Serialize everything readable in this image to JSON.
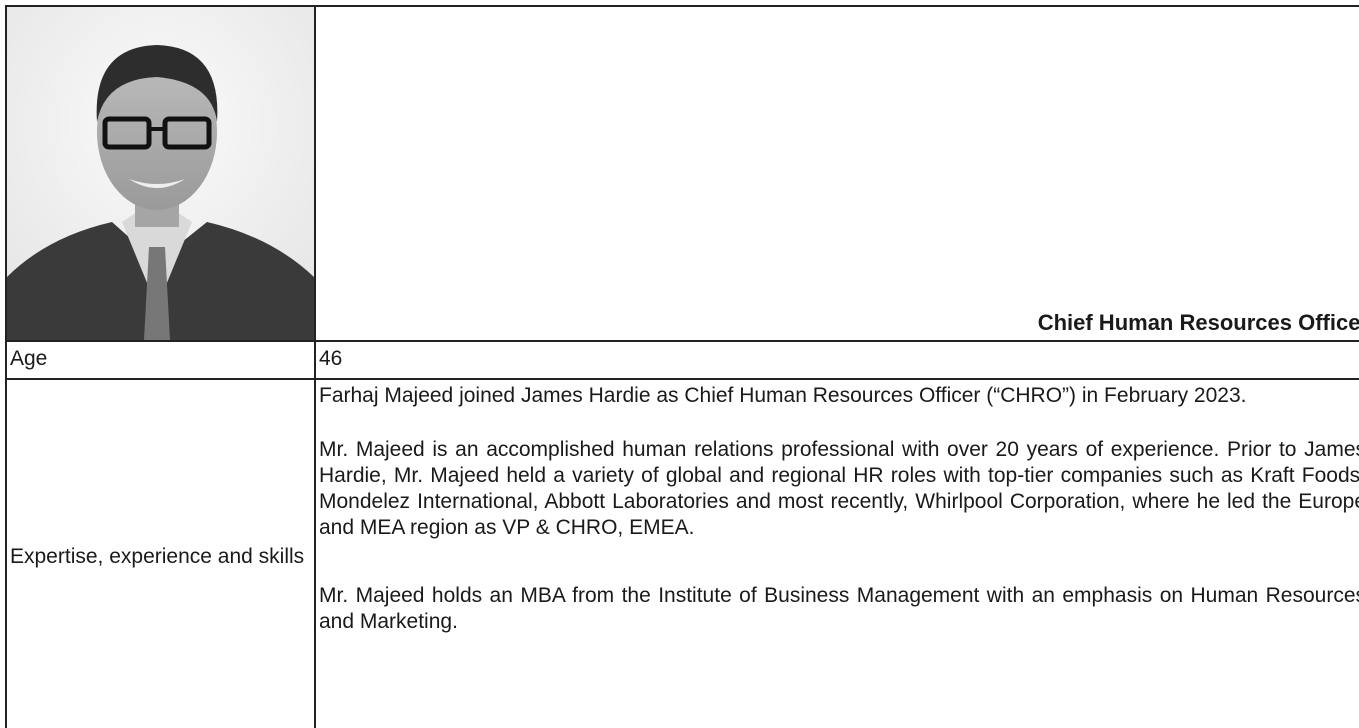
{
  "header": {
    "title": "Chief Human Resources Officer"
  },
  "rows": [
    {
      "label": "Age",
      "value": "46"
    },
    {
      "label": "Expertise, experience and skills",
      "paragraphs": [
        "Farhaj Majeed joined James Hardie as Chief Human Resources Officer (“CHRO”) in February 2023.",
        "Mr. Majeed is an accomplished human relations professional with over 20 years of experience. Prior to James Hardie, Mr. Majeed held a variety of global and regional HR roles with top-tier companies such as Kraft Foods, Mondelez International, Abbott Laboratories and most recently, Whirlpool Corporation, where he led the Europe and MEA region as VP & CHRO, EMEA.",
        "Mr. Majeed holds an MBA from the Institute of Business Management with an emphasis on Human Resources and Marketing."
      ]
    }
  ]
}
